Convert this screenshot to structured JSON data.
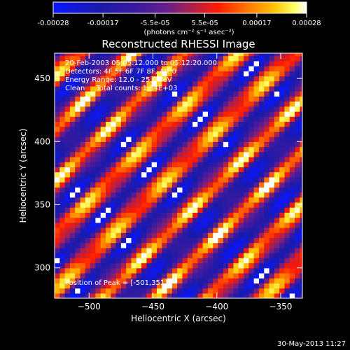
{
  "chart_data": {
    "type": "heatmap",
    "title": "Reconstructed RHESSI Image",
    "xlabel": "Heliocentric X (arcsec)",
    "ylabel": "Heliocentric Y (arcsec)",
    "xlim": [
      -527,
      -333
    ],
    "ylim": [
      276,
      470
    ],
    "x_ticks": [
      -500,
      -450,
      -400,
      -350
    ],
    "y_ticks": [
      300,
      350,
      400,
      450
    ],
    "colorbar": {
      "ticks": [
        "-0.00028",
        "-0.00017",
        "-5.5e-05",
        "5.5e-05",
        "0.00017",
        "0.00028"
      ],
      "tick_values": [
        -0.00028,
        -0.00017,
        -5.5e-05,
        5.5e-05,
        0.00017,
        0.00028
      ],
      "range": [
        -0.00028,
        0.00028
      ],
      "unit_label": "(photons cm⁻² s⁻¹ asec⁻²)"
    },
    "annotations": [
      "20-Feb-2003 05:05:12.000 to 05:12:20.000",
      "Detectors: 4F 5F 6F 7F 8F, Att 0",
      "Energy Range: 12.0 - 25.0 keV",
      "Clean     Total counts: 1.34E+03"
    ],
    "peak_label": "Position of Peak = [-501,351]",
    "peak_position": [
      -501,
      351
    ],
    "footer_date": "30-May-2013 11:27",
    "pattern": {
      "description": "diagonal fringe pattern",
      "stripe_direction": [
        1,
        1
      ],
      "wavelength_arcsec": 30
    }
  }
}
